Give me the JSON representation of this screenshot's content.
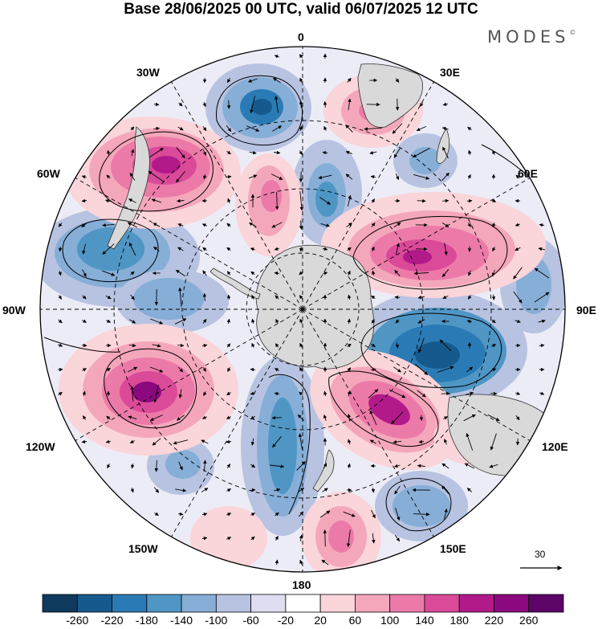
{
  "title": "Base 28/06/2025 00 UTC, valid 06/07/2025 12 UTC",
  "brand": "MODES",
  "brand_mark": "©",
  "longitude_labels": [
    "0",
    "30E",
    "60E",
    "90E",
    "120E",
    "150E",
    "180",
    "150W",
    "120W",
    "90W",
    "60W",
    "30W"
  ],
  "vector_scale": {
    "value": "30"
  },
  "colorbar": {
    "ticks": [
      "-260",
      "-220",
      "-180",
      "-140",
      "-100",
      "-60",
      "-20",
      "20",
      "60",
      "100",
      "140",
      "180",
      "220",
      "260"
    ],
    "colors": [
      "#0f3a5e",
      "#165a8d",
      "#2a7bb5",
      "#4f96c5",
      "#86aed7",
      "#b7c3e1",
      "#dedef0",
      "#ffffff",
      "#fad5da",
      "#f4a7bb",
      "#ec7aa8",
      "#db4a99",
      "#b21a8a",
      "#8c087f",
      "#5c0468"
    ]
  },
  "map_colors": {
    "land": "#d9d9d9",
    "land_edge": "#303030",
    "grid": "#000000"
  }
}
